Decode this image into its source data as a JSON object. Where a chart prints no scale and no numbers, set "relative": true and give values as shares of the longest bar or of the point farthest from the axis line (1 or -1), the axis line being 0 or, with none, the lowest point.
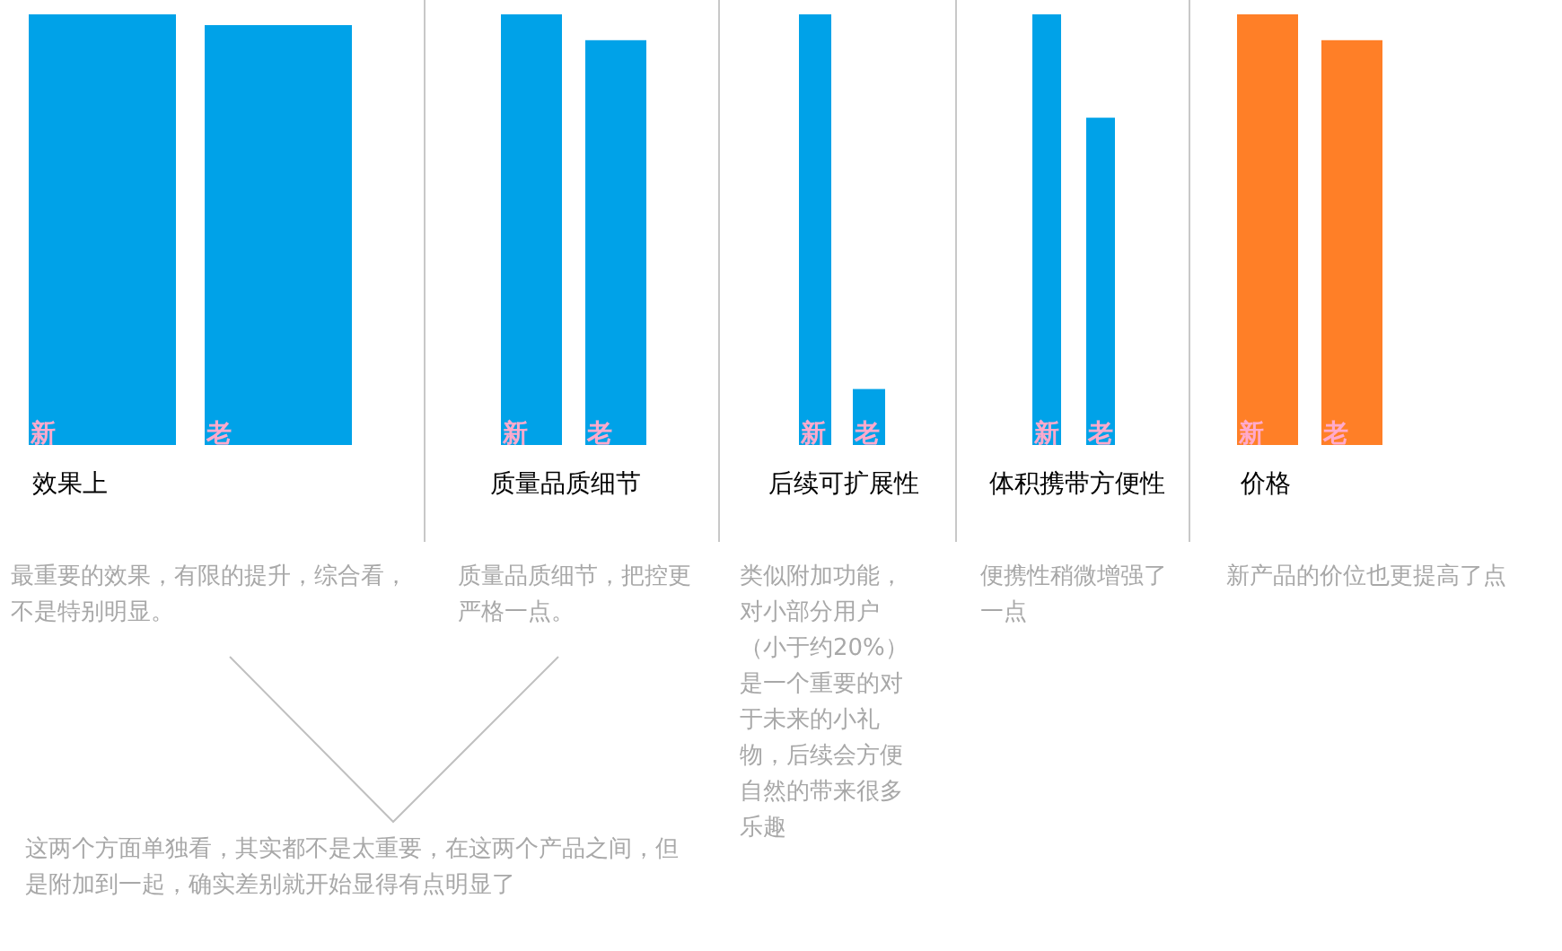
{
  "chart_data": {
    "type": "bar",
    "relative": true,
    "categories": [
      "效果上",
      "质量品质细节",
      "后续可扩展性",
      "体积携带方便性",
      "价格"
    ],
    "series": [
      {
        "name": "新",
        "colors": [
          "#00a2e8",
          "#00a2e8",
          "#00a2e8",
          "#00a2e8",
          "#ff7f27"
        ],
        "values": [
          1,
          1,
          1,
          1,
          1
        ]
      },
      {
        "name": "老",
        "colors": [
          "#00a2e8",
          "#00a2e8",
          "#00a2e8",
          "#00a2e8",
          "#ff7f27"
        ],
        "values": [
          0.975,
          0.94,
          0.13,
          0.76,
          0.94
        ]
      }
    ],
    "annotations": [
      "最重要的效果，有限的提升，综合看，不是特别明显。",
      "质量品质细节，把控更严格一点。",
      "类似附加功能，对小部分用户（小于约20%）是一个重要的对于未来的小礼物，后续会方便自然的带来很多乐趣",
      "便携性稍微增强了一点",
      "新产品的价位也更提高了点",
      "这两个方面单独看，其实都不是太重要，在这两个产品之间，但是附加到一起，确实差别就开始显得有点明显了"
    ]
  }
}
